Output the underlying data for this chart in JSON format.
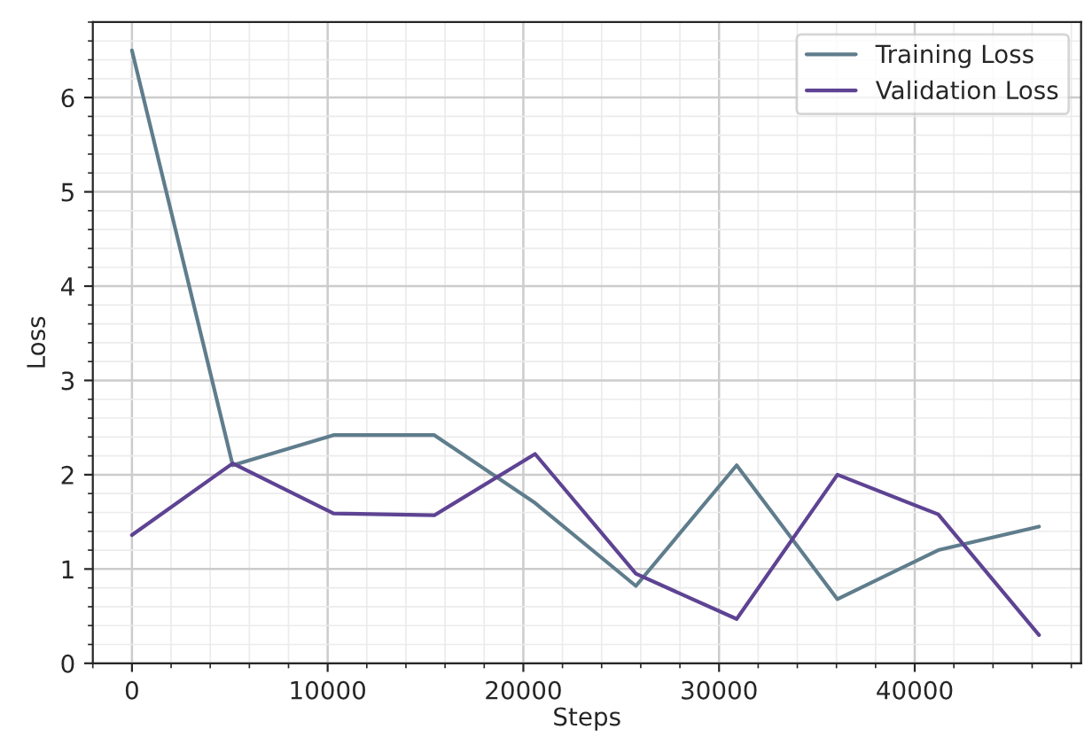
{
  "chart_data": {
    "type": "line",
    "xlabel": "Steps",
    "ylabel": "Loss",
    "series": [
      {
        "name": "Training Loss",
        "color": "#5f7d8c",
        "x": [
          0,
          5150,
          10300,
          15450,
          20600,
          25750,
          30900,
          36050,
          41200,
          46350
        ],
        "values": [
          6.5,
          2.1,
          2.42,
          2.42,
          1.7,
          0.82,
          2.1,
          0.68,
          1.2,
          1.45
        ]
      },
      {
        "name": "Validation Loss",
        "color": "#5e4393",
        "x": [
          0,
          5150,
          10300,
          15450,
          20600,
          25750,
          30900,
          36050,
          41200,
          46350
        ],
        "values": [
          1.36,
          2.12,
          1.59,
          1.57,
          2.22,
          0.95,
          0.47,
          2.0,
          1.58,
          0.3
        ]
      }
    ],
    "xlim": [
      -2000,
      48500
    ],
    "ylim": [
      0,
      6.8
    ],
    "xticks": [
      0,
      10000,
      20000,
      30000,
      40000
    ],
    "yticks": [
      0,
      1,
      2,
      3,
      4,
      5,
      6
    ],
    "grid": true,
    "legend": "top right",
    "line_style": "solid",
    "marker": "none"
  }
}
